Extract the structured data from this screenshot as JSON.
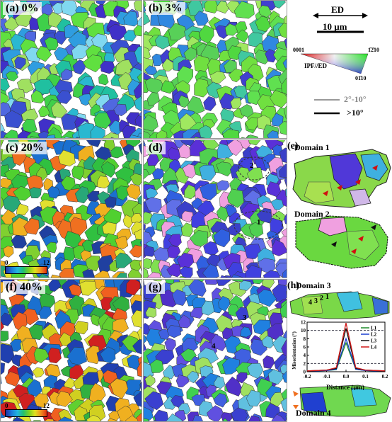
{
  "panels": [
    {
      "id": "a",
      "label": "(a)  0%"
    },
    {
      "id": "b",
      "label": "(b)  3%"
    },
    {
      "id": "c",
      "label": "(c)  20%"
    },
    {
      "id": "d",
      "label": "(d)"
    },
    {
      "id": "f",
      "label": "(f)  40%"
    },
    {
      "id": "g",
      "label": "(g)"
    }
  ],
  "legend": {
    "ed_label": "ED",
    "scale_label": "10 μm",
    "ipf_label": "IPF//ED",
    "corner_0001": "0001",
    "corner_1210": "1̄2̄10",
    "corner_0110": "01̄10",
    "boundary_low": "2°-10°",
    "boundary_high": ">10°"
  },
  "colorbar_c": {
    "min": "0",
    "max": "12"
  },
  "colorbar_f": {
    "min": "0",
    "max": "12"
  },
  "panel_e": {
    "label": "(e)",
    "domain1": "Domain 1",
    "domain2": "Domain 2"
  },
  "panel_h": {
    "label": "(h)",
    "domain3": "Domain 3",
    "domain4": "Domain 4",
    "marks": [
      "4",
      "3",
      "2",
      "1"
    ]
  },
  "marks_d": [
    "2",
    "1"
  ],
  "marks_g": [
    "3",
    "4"
  ],
  "chart_data": {
    "type": "line",
    "xlabel": "Distance (μm)",
    "ylabel": "Misorientation (°)",
    "xlim": [
      -0.2,
      0.2
    ],
    "ylim": [
      0,
      12
    ],
    "xticks": [
      "-0.2",
      "-0.1",
      "0.0",
      "0.1",
      "0.2"
    ],
    "yticks": [
      "0",
      "2",
      "4",
      "6",
      "8",
      "10",
      "12"
    ],
    "x": [
      -0.2,
      -0.15,
      -0.1,
      -0.05,
      0.0,
      0.05,
      0.1,
      0.15,
      0.2
    ],
    "reference_lines": [
      2,
      10
    ],
    "series": [
      {
        "name": "L1",
        "color": "#1f8a2a",
        "values": [
          0.2,
          0.2,
          0.3,
          0.5,
          7.0,
          0.6,
          0.3,
          0.2,
          0.2
        ]
      },
      {
        "name": "L2",
        "color": "#1a3fd0",
        "values": [
          0.2,
          0.2,
          0.3,
          0.6,
          8.0,
          0.6,
          0.3,
          0.2,
          0.2
        ]
      },
      {
        "name": "L3",
        "color": "#111111",
        "values": [
          0.2,
          0.3,
          0.4,
          0.8,
          10.5,
          0.8,
          0.4,
          0.3,
          0.2
        ]
      },
      {
        "name": "L4",
        "color": "#d01818",
        "values": [
          0.2,
          0.3,
          0.4,
          1.0,
          11.8,
          1.0,
          0.4,
          0.3,
          0.2
        ]
      }
    ]
  }
}
